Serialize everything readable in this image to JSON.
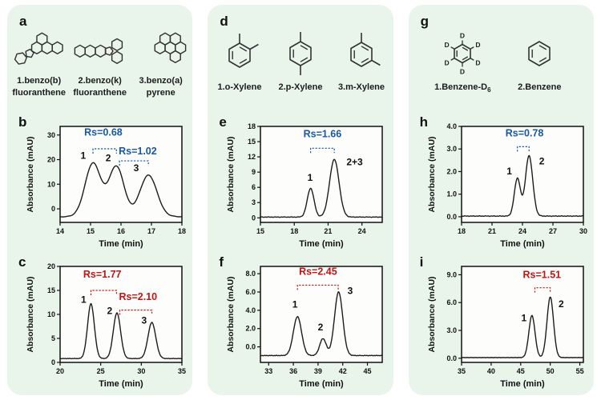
{
  "figure": {
    "background": "#ffffff",
    "panel_bg": "#e9f4ea",
    "accent_blue": "#1558a8",
    "accent_red": "#c11414",
    "curve_color": "#1c1c1c",
    "axis_color": "#111111"
  },
  "columns": [
    {
      "letter": "a",
      "molecules": [
        {
          "kind": "benzo-b-fluoranthene",
          "label_line1": "1.benzo(b)",
          "label_sub": "",
          "label_line2": "fluoranthene"
        },
        {
          "kind": "benzo-k-fluoranthene",
          "label_line1": "2.benzo(k)",
          "label_sub": "",
          "label_line2": "fluoranthene"
        },
        {
          "kind": "benzo-a-pyrene",
          "label_line1": "3.benzo(a)",
          "label_sub": "",
          "label_line2": "pyrene"
        }
      ]
    },
    {
      "letter": "d",
      "molecules": [
        {
          "kind": "o-xylene",
          "label_line1": "1.o-Xylene",
          "label_sub": "",
          "label_line2": ""
        },
        {
          "kind": "p-xylene",
          "label_line1": "2.p-Xylene",
          "label_sub": "",
          "label_line2": ""
        },
        {
          "kind": "m-xylene",
          "label_line1": "3.m-Xylene",
          "label_sub": "",
          "label_line2": ""
        }
      ]
    },
    {
      "letter": "g",
      "molecules": [
        {
          "kind": "benzene-d6",
          "label_line1": "1.Benzene-D",
          "label_sub": "6",
          "label_line2": ""
        },
        {
          "kind": "benzene",
          "label_line1": "2.Benzene",
          "label_sub": "",
          "label_line2": ""
        }
      ]
    }
  ],
  "chart_data": [
    {
      "panel": "b",
      "type": "line",
      "xlabel": "Time (min)",
      "ylabel": "Absorbance (mAU)",
      "xlim": [
        14,
        18
      ],
      "ylim": [
        -5.5,
        33.5
      ],
      "xticks": [
        14,
        15,
        16,
        17,
        18
      ],
      "xtick_labels": [
        "14",
        "15",
        "16",
        "17",
        "18"
      ],
      "yticks": [
        0,
        10,
        20,
        30
      ],
      "ytick_labels": [
        "0",
        "10",
        "20",
        "30"
      ],
      "grid": false,
      "legend": "none",
      "baseline": -3.2,
      "noise": 0.1,
      "peaks": [
        {
          "label": "1",
          "center": 15.08,
          "apex": 18.5,
          "sigma": 0.26,
          "label_x": 14.76,
          "label_y": 20.3
        },
        {
          "label": "2",
          "center": 15.85,
          "apex": 17.2,
          "sigma": 0.25,
          "label_x": 15.58,
          "label_y": 19.3
        },
        {
          "label": "3",
          "center": 16.9,
          "apex": 13.7,
          "sigma": 0.28,
          "label_x": 16.5,
          "label_y": 15.3
        }
      ],
      "annotations": [
        {
          "text": "Rs=0.68",
          "color": "#1558a8",
          "text_x": 15.42,
          "text_y": 29.8,
          "bx1": 15.08,
          "bx2": 15.85,
          "by": 24.4
        },
        {
          "text": "Rs=1.02",
          "color": "#1558a8",
          "text_x": 16.55,
          "text_y": 22.2,
          "bx1": 15.95,
          "bx2": 16.9,
          "by": 19.5
        }
      ]
    },
    {
      "panel": "c",
      "type": "line",
      "xlabel": "Time (min)",
      "ylabel": "Absorbance (mAU)",
      "xlim": [
        20,
        35
      ],
      "ylim": [
        0,
        20
      ],
      "xticks": [
        20,
        25,
        30,
        35
      ],
      "xtick_labels": [
        "20",
        "25",
        "30",
        "35"
      ],
      "yticks": [
        0,
        5,
        10,
        15,
        20
      ],
      "ytick_labels": [
        "0",
        "5",
        "10",
        "15",
        "20"
      ],
      "grid": false,
      "legend": "none",
      "baseline": 0.8,
      "noise": 0.04,
      "peaks": [
        {
          "label": "1",
          "center": 23.8,
          "apex": 12.2,
          "sigma": 0.42,
          "label_x": 22.9,
          "label_y": 12.4
        },
        {
          "label": "2",
          "center": 27.0,
          "apex": 10.3,
          "sigma": 0.45,
          "label_x": 26.1,
          "label_y": 10.1
        },
        {
          "label": "3",
          "center": 31.3,
          "apex": 8.3,
          "sigma": 0.48,
          "label_x": 30.35,
          "label_y": 8.1
        }
      ],
      "annotations": [
        {
          "text": "Rs=1.77",
          "color": "#c11414",
          "text_x": 25.2,
          "text_y": 17.7,
          "bx1": 23.8,
          "bx2": 26.95,
          "by": 15.0
        },
        {
          "text": "Rs=2.10",
          "color": "#c11414",
          "text_x": 29.6,
          "text_y": 13.0,
          "bx1": 27.35,
          "bx2": 31.3,
          "by": 10.9
        }
      ]
    },
    {
      "panel": "e",
      "type": "line",
      "xlabel": "Time (min)",
      "ylabel": "Absorbance (mAU)",
      "xlim": [
        15,
        25.8
      ],
      "ylim": [
        -0.9,
        18
      ],
      "xticks": [
        15,
        18,
        21,
        24
      ],
      "xtick_labels": [
        "15",
        "18",
        "21",
        "24"
      ],
      "yticks": [
        0,
        3,
        6,
        9,
        12,
        15,
        18
      ],
      "ytick_labels": [
        "0",
        "3",
        "6",
        "9",
        "12",
        "15",
        "18"
      ],
      "grid": false,
      "legend": "none",
      "baseline": 0.15,
      "noise": 0.05,
      "peaks": [
        {
          "label": "1",
          "center": 19.45,
          "apex": 5.8,
          "sigma": 0.3,
          "label_x": 19.4,
          "label_y": 7.3
        },
        {
          "label": "2+3",
          "center": 21.55,
          "apex": 11.5,
          "sigma": 0.42,
          "label_x": 23.35,
          "label_y": 10.4
        }
      ],
      "annotations": [
        {
          "text": "Rs=1.66",
          "color": "#1558a8",
          "text_x": 20.5,
          "text_y": 15.9,
          "bx1": 19.45,
          "bx2": 21.55,
          "by": 13.7
        }
      ]
    },
    {
      "panel": "f",
      "type": "line",
      "xlabel": "Time (min)",
      "ylabel": "Absorbance (mAU)",
      "xlim": [
        32,
        46.8
      ],
      "ylim": [
        -1.7,
        8.8
      ],
      "xticks": [
        33,
        36,
        39,
        42,
        45
      ],
      "xtick_labels": [
        "33",
        "36",
        "39",
        "42",
        "45"
      ],
      "yticks": [
        0,
        2,
        4,
        6,
        8
      ],
      "ytick_labels": [
        "0.0",
        "2.0",
        "4.0",
        "6.0",
        "8.0"
      ],
      "grid": false,
      "legend": "none",
      "baseline": -0.95,
      "noise": 0.03,
      "peaks": [
        {
          "label": "1",
          "center": 36.5,
          "apex": 3.3,
          "sigma": 0.5,
          "label_x": 36.2,
          "label_y": 4.3
        },
        {
          "label": "2",
          "center": 39.6,
          "apex": 0.9,
          "sigma": 0.4,
          "label_x": 39.3,
          "label_y": 1.8
        },
        {
          "label": "3",
          "center": 41.5,
          "apex": 6.0,
          "sigma": 0.5,
          "label_x": 42.9,
          "label_y": 5.8
        }
      ],
      "annotations": [
        {
          "text": "Rs=2.45",
          "color": "#c11414",
          "text_x": 39.0,
          "text_y": 7.9,
          "bx1": 36.5,
          "bx2": 41.45,
          "by": 6.75
        }
      ]
    },
    {
      "panel": "h",
      "type": "line",
      "xlabel": "Time (min)",
      "ylabel": "Absorbance (mAU)",
      "xlim": [
        18,
        30
      ],
      "ylim": [
        -0.25,
        4.0
      ],
      "xticks": [
        18,
        21,
        24,
        27,
        30
      ],
      "xtick_labels": [
        "18",
        "21",
        "24",
        "27",
        "30"
      ],
      "yticks": [
        0,
        1,
        2,
        3,
        4
      ],
      "ytick_labels": [
        "0.0",
        "1.0",
        "2.0",
        "3.0",
        "4.0"
      ],
      "grid": false,
      "legend": "none",
      "baseline": 0.03,
      "noise": 0.014,
      "peaks": [
        {
          "label": "1",
          "center": 23.5,
          "apex": 1.7,
          "sigma": 0.3,
          "label_x": 22.7,
          "label_y": 1.88
        },
        {
          "label": "2",
          "center": 24.65,
          "apex": 2.7,
          "sigma": 0.36,
          "label_x": 25.9,
          "label_y": 2.32
        }
      ],
      "annotations": [
        {
          "text": "Rs=0.78",
          "color": "#1558a8",
          "text_x": 24.2,
          "text_y": 3.56,
          "bx1": 23.5,
          "bx2": 24.65,
          "by": 3.1
        }
      ]
    },
    {
      "panel": "i",
      "type": "line",
      "xlabel": "Time (min)",
      "ylabel": "Absorbance (mAU)",
      "xlim": [
        35,
        55.6
      ],
      "ylim": [
        -0.45,
        9.9
      ],
      "xticks": [
        35,
        40,
        45,
        50,
        55
      ],
      "xtick_labels": [
        "35",
        "40",
        "45",
        "50",
        "55"
      ],
      "yticks": [
        0,
        3,
        6,
        9
      ],
      "ytick_labels": [
        "0.0",
        "3.0",
        "6.0",
        "9.0"
      ],
      "grid": false,
      "legend": "none",
      "baseline": 0.07,
      "noise": 0.025,
      "peaks": [
        {
          "label": "1",
          "center": 46.9,
          "apex": 4.6,
          "sigma": 0.52,
          "label_x": 45.55,
          "label_y": 4.0
        },
        {
          "label": "2",
          "center": 50.0,
          "apex": 6.6,
          "sigma": 0.55,
          "label_x": 51.85,
          "label_y": 5.5
        }
      ],
      "annotations": [
        {
          "text": "Rs=1.51",
          "color": "#c11414",
          "text_x": 48.6,
          "text_y": 8.65,
          "bx1": 47.4,
          "bx2": 50.0,
          "by": 7.6
        }
      ]
    }
  ]
}
